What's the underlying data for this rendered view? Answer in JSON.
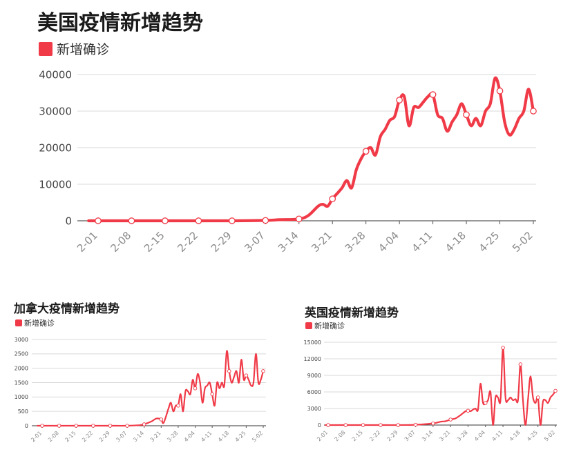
{
  "accent_color": "#f03a47",
  "chart_data": [
    {
      "type": "line",
      "title": "美国疫情新增趋势",
      "legend": "新增确诊",
      "legend_position": "top-left",
      "grid": true,
      "ylim": [
        0,
        40000
      ],
      "yticks": [
        "0",
        "10000",
        "20000",
        "30000",
        "40000"
      ],
      "xticks": [
        "2-01",
        "2-08",
        "2-15",
        "2-22",
        "2-29",
        "3-07",
        "3-14",
        "3-21",
        "3-28",
        "4-04",
        "4-11",
        "4-18",
        "4-25",
        "5-02"
      ],
      "points": [
        {
          "x": "1-30",
          "y": 0
        },
        {
          "x": "2-01",
          "y": 0
        },
        {
          "x": "2-08",
          "y": 0
        },
        {
          "x": "2-15",
          "y": 0
        },
        {
          "x": "2-22",
          "y": 0
        },
        {
          "x": "2-29",
          "y": 0
        },
        {
          "x": "3-07",
          "y": 100
        },
        {
          "x": "3-10",
          "y": 300
        },
        {
          "x": "3-14",
          "y": 500
        },
        {
          "x": "3-16",
          "y": 1500
        },
        {
          "x": "3-18",
          "y": 4000
        },
        {
          "x": "3-19",
          "y": 4500
        },
        {
          "x": "3-20",
          "y": 4000
        },
        {
          "x": "3-21",
          "y": 6000
        },
        {
          "x": "3-22",
          "y": 7500
        },
        {
          "x": "3-23",
          "y": 9000
        },
        {
          "x": "3-24",
          "y": 11000
        },
        {
          "x": "3-25",
          "y": 9000
        },
        {
          "x": "3-26",
          "y": 14000
        },
        {
          "x": "3-27",
          "y": 17000
        },
        {
          "x": "3-28",
          "y": 19000
        },
        {
          "x": "3-29",
          "y": 20000
        },
        {
          "x": "3-30",
          "y": 18000
        },
        {
          "x": "3-31",
          "y": 23000
        },
        {
          "x": "4-01",
          "y": 25000
        },
        {
          "x": "4-02",
          "y": 27500
        },
        {
          "x": "4-03",
          "y": 28500
        },
        {
          "x": "4-04",
          "y": 33000
        },
        {
          "x": "4-05",
          "y": 34000
        },
        {
          "x": "4-06",
          "y": 26000
        },
        {
          "x": "4-07",
          "y": 31000
        },
        {
          "x": "4-08",
          "y": 31000
        },
        {
          "x": "4-09",
          "y": 32500
        },
        {
          "x": "4-10",
          "y": 34000
        },
        {
          "x": "4-11",
          "y": 34500
        },
        {
          "x": "4-12",
          "y": 29000
        },
        {
          "x": "4-13",
          "y": 28000
        },
        {
          "x": "4-14",
          "y": 24500
        },
        {
          "x": "4-15",
          "y": 27000
        },
        {
          "x": "4-16",
          "y": 29000
        },
        {
          "x": "4-17",
          "y": 32000
        },
        {
          "x": "4-18",
          "y": 29000
        },
        {
          "x": "4-19",
          "y": 26000
        },
        {
          "x": "4-20",
          "y": 28000
        },
        {
          "x": "4-21",
          "y": 26000
        },
        {
          "x": "4-22",
          "y": 30000
        },
        {
          "x": "4-23",
          "y": 32000
        },
        {
          "x": "4-24",
          "y": 39000
        },
        {
          "x": "4-25",
          "y": 35500
        },
        {
          "x": "4-26",
          "y": 27000
        },
        {
          "x": "4-27",
          "y": 23500
        },
        {
          "x": "4-28",
          "y": 25000
        },
        {
          "x": "4-29",
          "y": 28000
        },
        {
          "x": "4-30",
          "y": 30000
        },
        {
          "x": "5-01",
          "y": 36000
        },
        {
          "x": "5-02",
          "y": 30000
        }
      ]
    },
    {
      "type": "line",
      "title": "加拿大疫情新增趋势",
      "legend": "新增确诊",
      "legend_position": "top-left",
      "grid": true,
      "ylim": [
        0,
        3000
      ],
      "yticks": [
        "0",
        "500",
        "1000",
        "1500",
        "2000",
        "2500",
        "3000"
      ],
      "xticks": [
        "2-01",
        "2-08",
        "2-15",
        "2-22",
        "2-29",
        "3-07",
        "3-14",
        "3-21",
        "3-28",
        "4-04",
        "4-11",
        "4-18",
        "4-25",
        "5-02"
      ],
      "points": [
        {
          "x": "1-30",
          "y": 0
        },
        {
          "x": "2-01",
          "y": 0
        },
        {
          "x": "2-08",
          "y": 0
        },
        {
          "x": "2-15",
          "y": 0
        },
        {
          "x": "2-22",
          "y": 0
        },
        {
          "x": "2-29",
          "y": 0
        },
        {
          "x": "3-07",
          "y": 0
        },
        {
          "x": "3-12",
          "y": 20
        },
        {
          "x": "3-14",
          "y": 50
        },
        {
          "x": "3-17",
          "y": 150
        },
        {
          "x": "3-19",
          "y": 250
        },
        {
          "x": "3-21",
          "y": 220
        },
        {
          "x": "3-22",
          "y": 100
        },
        {
          "x": "3-24",
          "y": 600
        },
        {
          "x": "3-25",
          "y": 800
        },
        {
          "x": "3-26",
          "y": 500
        },
        {
          "x": "3-27",
          "y": 700
        },
        {
          "x": "3-28",
          "y": 700
        },
        {
          "x": "3-29",
          "y": 1100
        },
        {
          "x": "3-30",
          "y": 500
        },
        {
          "x": "3-31",
          "y": 1200
        },
        {
          "x": "4-01",
          "y": 1200
        },
        {
          "x": "4-02",
          "y": 1100
        },
        {
          "x": "4-03",
          "y": 1600
        },
        {
          "x": "4-04",
          "y": 1300
        },
        {
          "x": "4-05",
          "y": 1800
        },
        {
          "x": "4-06",
          "y": 1500
        },
        {
          "x": "4-07",
          "y": 800
        },
        {
          "x": "4-08",
          "y": 1300
        },
        {
          "x": "4-09",
          "y": 1400
        },
        {
          "x": "4-10",
          "y": 1500
        },
        {
          "x": "4-11",
          "y": 1100
        },
        {
          "x": "4-12",
          "y": 700
        },
        {
          "x": "4-13",
          "y": 1500
        },
        {
          "x": "4-14",
          "y": 1300
        },
        {
          "x": "4-15",
          "y": 1500
        },
        {
          "x": "4-16",
          "y": 1400
        },
        {
          "x": "4-17",
          "y": 2600
        },
        {
          "x": "4-18",
          "y": 1900
        },
        {
          "x": "4-19",
          "y": 1500
        },
        {
          "x": "4-20",
          "y": 1700
        },
        {
          "x": "4-21",
          "y": 1900
        },
        {
          "x": "4-22",
          "y": 1500
        },
        {
          "x": "4-23",
          "y": 2300
        },
        {
          "x": "4-24",
          "y": 1600
        },
        {
          "x": "4-25",
          "y": 1750
        },
        {
          "x": "4-26",
          "y": 1600
        },
        {
          "x": "4-27",
          "y": 1400
        },
        {
          "x": "4-28",
          "y": 1500
        },
        {
          "x": "4-29",
          "y": 2500
        },
        {
          "x": "4-30",
          "y": 1500
        },
        {
          "x": "5-01",
          "y": 1600
        },
        {
          "x": "5-02",
          "y": 1900
        }
      ]
    },
    {
      "type": "line",
      "title": "英国疫情新增趋势",
      "legend": "新增确诊",
      "legend_position": "top-left",
      "grid": true,
      "ylim": [
        0,
        15000
      ],
      "yticks": [
        "0",
        "3000",
        "6000",
        "9000",
        "12000",
        "15000"
      ],
      "xticks": [
        "2-01",
        "2-08",
        "2-15",
        "2-22",
        "2-29",
        "3-07",
        "3-14",
        "3-21",
        "3-28",
        "4-04",
        "4-11",
        "4-18",
        "4-25",
        "5-02"
      ],
      "points": [
        {
          "x": "1-30",
          "y": 0
        },
        {
          "x": "2-01",
          "y": 0
        },
        {
          "x": "2-08",
          "y": 0
        },
        {
          "x": "2-15",
          "y": 0
        },
        {
          "x": "2-22",
          "y": 0
        },
        {
          "x": "2-29",
          "y": 0
        },
        {
          "x": "3-07",
          "y": 50
        },
        {
          "x": "3-14",
          "y": 300
        },
        {
          "x": "3-17",
          "y": 600
        },
        {
          "x": "3-19",
          "y": 700
        },
        {
          "x": "3-21",
          "y": 1000
        },
        {
          "x": "3-23",
          "y": 1200
        },
        {
          "x": "3-25",
          "y": 1800
        },
        {
          "x": "3-27",
          "y": 2500
        },
        {
          "x": "3-28",
          "y": 2600
        },
        {
          "x": "3-29",
          "y": 2500
        },
        {
          "x": "3-30",
          "y": 2800
        },
        {
          "x": "3-31",
          "y": 3000
        },
        {
          "x": "4-01",
          "y": 2800
        },
        {
          "x": "4-02",
          "y": 7500
        },
        {
          "x": "4-03",
          "y": 4000
        },
        {
          "x": "4-04",
          "y": 4000
        },
        {
          "x": "4-05",
          "y": 4500
        },
        {
          "x": "4-06",
          "y": 6000
        },
        {
          "x": "4-07",
          "y": 0
        },
        {
          "x": "4-08",
          "y": 5000
        },
        {
          "x": "4-09",
          "y": 5000
        },
        {
          "x": "4-10",
          "y": 4500
        },
        {
          "x": "4-11",
          "y": 14000
        },
        {
          "x": "4-12",
          "y": 5000
        },
        {
          "x": "4-13",
          "y": 4500
        },
        {
          "x": "4-14",
          "y": 5000
        },
        {
          "x": "4-15",
          "y": 4500
        },
        {
          "x": "4-16",
          "y": 4700
        },
        {
          "x": "4-17",
          "y": 4500
        },
        {
          "x": "4-18",
          "y": 11000
        },
        {
          "x": "4-19",
          "y": 4500
        },
        {
          "x": "4-20",
          "y": 0
        },
        {
          "x": "4-21",
          "y": 4500
        },
        {
          "x": "4-22",
          "y": 8800
        },
        {
          "x": "4-23",
          "y": 5000
        },
        {
          "x": "4-24",
          "y": 4000
        },
        {
          "x": "4-25",
          "y": 5000
        },
        {
          "x": "4-26",
          "y": 0
        },
        {
          "x": "4-27",
          "y": 4200
        },
        {
          "x": "4-28",
          "y": 4500
        },
        {
          "x": "4-29",
          "y": 4000
        },
        {
          "x": "4-30",
          "y": 5000
        },
        {
          "x": "5-01",
          "y": 5500
        },
        {
          "x": "5-02",
          "y": 6200
        }
      ]
    }
  ]
}
